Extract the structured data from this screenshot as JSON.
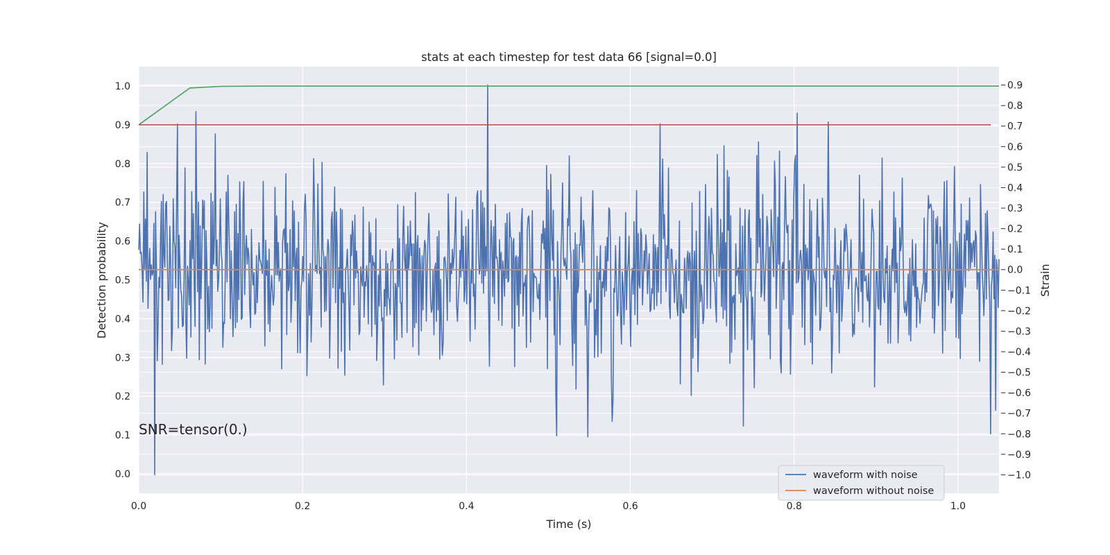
{
  "chart_data": {
    "type": "line",
    "title": "stats at each timestep for test data 66 [signal=0.0]",
    "xlabel": "Time (s)",
    "ylabel_left": "Detection probability",
    "ylabel_right": "Strain",
    "annotation": "SNR=tensor(0.)",
    "xlim": [
      0.0,
      1.05
    ],
    "ylim_left": [
      -0.05,
      1.05
    ],
    "ylim_right": [
      -1.09,
      0.99
    ],
    "x_ticks": [
      "0.0",
      "0.2",
      "0.4",
      "0.6",
      "0.8",
      "1.0"
    ],
    "x_tick_values": [
      0.0,
      0.2,
      0.4,
      0.6,
      0.8,
      1.0
    ],
    "y_left_ticks": [
      "0.0",
      "0.1",
      "0.2",
      "0.3",
      "0.4",
      "0.5",
      "0.6",
      "0.7",
      "0.8",
      "0.9",
      "1.0"
    ],
    "y_left_tick_values": [
      0.0,
      0.1,
      0.2,
      0.3,
      0.4,
      0.5,
      0.6,
      0.7,
      0.8,
      0.9,
      1.0
    ],
    "y_right_ticks": [
      "−1.0",
      "−0.9",
      "−0.8",
      "−0.7",
      "−0.6",
      "−0.5",
      "−0.4",
      "−0.3",
      "−0.2",
      "−0.1",
      "0.0",
      "0.1",
      "0.2",
      "0.3",
      "0.4",
      "0.5",
      "0.6",
      "0.7",
      "0.8",
      "0.9"
    ],
    "y_right_tick_values": [
      -1.0,
      -0.9,
      -0.8,
      -0.7,
      -0.6,
      -0.5,
      -0.4,
      -0.3,
      -0.2,
      -0.1,
      0.0,
      0.1,
      0.2,
      0.3,
      0.4,
      0.5,
      0.6,
      0.7,
      0.8,
      0.9
    ],
    "grid": true,
    "legend_position": "lower-right",
    "series": [
      {
        "name": "waveform with noise",
        "axis": "right",
        "color": "#4c72b0",
        "x_range": [
          0.0,
          1.05
        ],
        "n_points": 1024,
        "noise_std": 0.23,
        "notable_points": [
          {
            "x": 0.0195,
            "y": -1.0
          },
          {
            "x": 0.047,
            "y": 0.71
          },
          {
            "x": 0.426,
            "y": 0.9
          },
          {
            "x": 0.842,
            "y": 0.72
          },
          {
            "x": 0.51,
            "y": -0.81
          },
          {
            "x": 0.578,
            "y": -0.74
          },
          {
            "x": 1.04,
            "y": -0.8
          }
        ]
      },
      {
        "name": "waveform without noise",
        "axis": "right",
        "color": "#dd8452",
        "x": [
          0.0,
          1.05
        ],
        "y": [
          0.0,
          0.0
        ]
      },
      {
        "axis": "left",
        "color": "#55a868",
        "x": [
          0.0,
          0.0625,
          0.1,
          0.15,
          0.2,
          1.05
        ],
        "y": [
          0.9,
          0.995,
          0.999,
          1.0,
          1.0,
          1.0
        ]
      },
      {
        "axis": "left",
        "color": "#c44e52",
        "x": [
          0.0,
          1.04
        ],
        "y": [
          0.9,
          0.9
        ]
      }
    ]
  }
}
